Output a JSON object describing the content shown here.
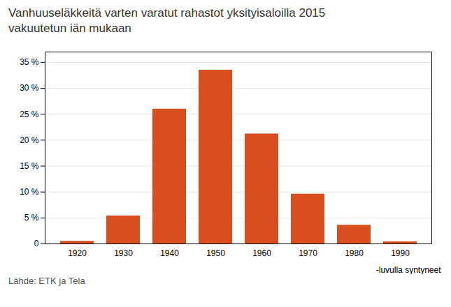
{
  "chart_data": {
    "type": "bar",
    "title": "Vanhuuseläkkeitä varten varatut rahastot yksityisaloilla 2015\nvakuutetun iän mukaan",
    "xlabel": "-luvulla syntyneet",
    "source": "Lähde: ETK ja Tela",
    "categories": [
      1920,
      1930,
      1940,
      1950,
      1960,
      1970,
      1980,
      1990
    ],
    "values": [
      0.5,
      5.4,
      26.0,
      33.5,
      21.2,
      9.6,
      3.6,
      0.4
    ],
    "color": "#D94E1F",
    "ylim": [
      0,
      37
    ],
    "yticks": [
      0,
      {
        "value": 5,
        "label": "5 %"
      },
      {
        "value": 10,
        "label": "10 %"
      },
      {
        "value": 15,
        "label": "15 %"
      },
      {
        "value": 20,
        "label": "20 %"
      },
      {
        "value": 25,
        "label": "25 %"
      },
      {
        "value": 30,
        "label": "30 %"
      },
      {
        "value": 35,
        "label": "35 %"
      }
    ],
    "grid": true
  }
}
